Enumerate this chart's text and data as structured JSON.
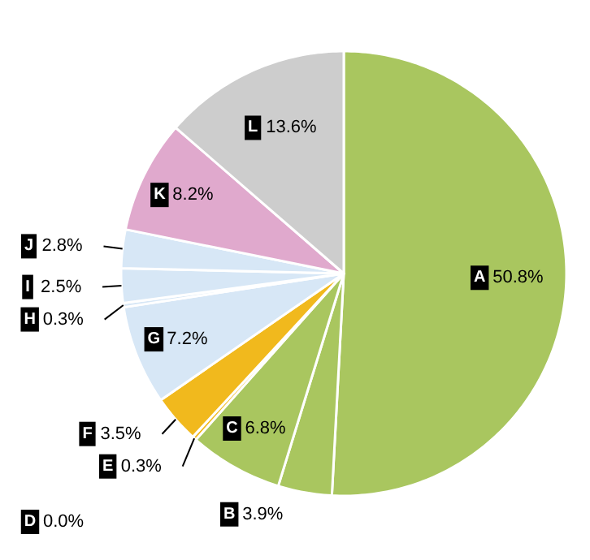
{
  "chart_data": {
    "type": "pie",
    "categories": [
      "A",
      "B",
      "C",
      "D",
      "E",
      "F",
      "G",
      "H",
      "I",
      "J",
      "K",
      "L"
    ],
    "values": [
      50.8,
      3.9,
      6.8,
      0.0,
      0.3,
      3.5,
      7.2,
      0.3,
      2.5,
      2.8,
      8.2,
      13.6
    ],
    "value_labels": [
      "50.8%",
      "3.9%",
      "6.8%",
      "0.0%",
      "0.3%",
      "3.5%",
      "7.2%",
      "0.3%",
      "2.5%",
      "2.8%",
      "8.2%",
      "13.6%"
    ],
    "colors": [
      "#a9c65f",
      "#a9c65f",
      "#a9c65f",
      "#a9c65f",
      "#f1b91d",
      "#f1b91d",
      "#d7e7f6",
      "#d7e7f6",
      "#d7e7f6",
      "#d7e7f6",
      "#e0a9cd",
      "#cdcdcd"
    ]
  }
}
